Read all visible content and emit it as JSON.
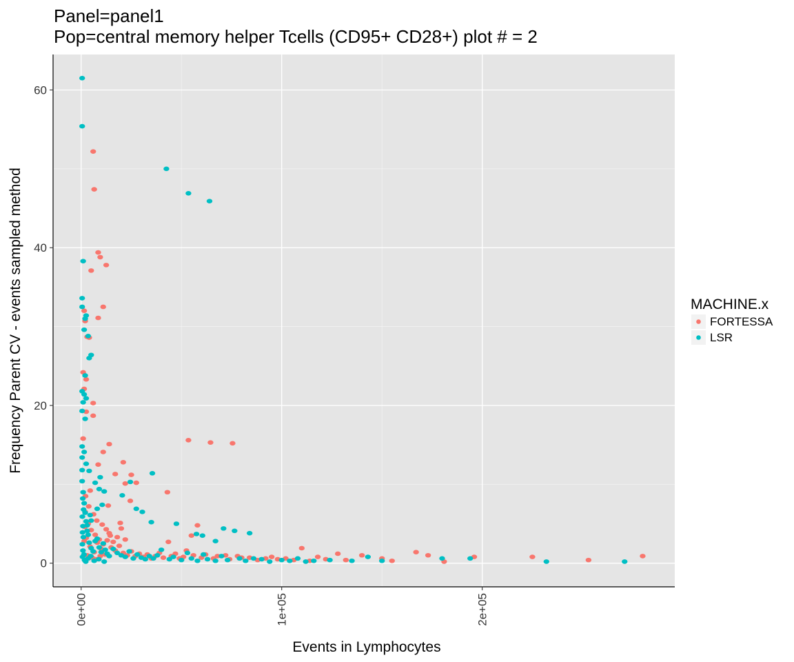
{
  "chart_data": {
    "type": "scatter",
    "title_line1": "Panel=panel1",
    "title_line2": "Pop=central memory helper Tcells (CD95+ CD28+) plot # = 2",
    "xlabel": "Events in Lymphocytes",
    "ylabel": "Frequency Parent CV - events sampled method",
    "xlim": [
      -14000,
      296000
    ],
    "ylim": [
      -3,
      64.5
    ],
    "x_ticks": [
      0,
      100000,
      200000
    ],
    "x_tick_labels": [
      "0e+00",
      "1e+05",
      "2e+05"
    ],
    "y_ticks": [
      0,
      20,
      40,
      60
    ],
    "y_tick_labels": [
      "0",
      "20",
      "40",
      "60"
    ],
    "grid": true,
    "background": "#e5e5e5",
    "legend": {
      "title": "MACHINE.x",
      "position": "right"
    },
    "series": [
      {
        "name": "FORTESSA",
        "color": "#f8766d",
        "points": [
          [
            6000,
            52.2
          ],
          [
            6500,
            47.4
          ],
          [
            8500,
            39.4
          ],
          [
            9500,
            38.8
          ],
          [
            12500,
            37.8
          ],
          [
            5000,
            37.1
          ],
          [
            11000,
            32.5
          ],
          [
            8500,
            31.1
          ],
          [
            1500,
            32.0
          ],
          [
            2000,
            30.7
          ],
          [
            3000,
            28.7
          ],
          [
            4000,
            28.6
          ],
          [
            1000,
            24.2
          ],
          [
            2500,
            23.3
          ],
          [
            1500,
            22.1
          ],
          [
            6000,
            20.3
          ],
          [
            6000,
            18.7
          ],
          [
            2500,
            19.2
          ],
          [
            1000,
            15.8
          ],
          [
            53500,
            15.6
          ],
          [
            64500,
            15.3
          ],
          [
            75500,
            15.2
          ],
          [
            14000,
            15.1
          ],
          [
            11000,
            14.1
          ],
          [
            8500,
            12.5
          ],
          [
            21000,
            12.8
          ],
          [
            17000,
            11.3
          ],
          [
            25000,
            11.2
          ],
          [
            22000,
            10.1
          ],
          [
            27500,
            10.2
          ],
          [
            43000,
            9.0
          ],
          [
            24500,
            7.9
          ],
          [
            13500,
            7.3
          ],
          [
            58000,
            4.8
          ],
          [
            43500,
            2.7
          ],
          [
            55000,
            3.5
          ],
          [
            52500,
            1.6
          ],
          [
            62000,
            1.1
          ],
          [
            72000,
            1.0
          ],
          [
            78000,
            0.9
          ],
          [
            84000,
            0.7
          ],
          [
            95000,
            0.8
          ],
          [
            102000,
            0.6
          ],
          [
            110000,
            1.9
          ],
          [
            118000,
            0.8
          ],
          [
            128000,
            1.2
          ],
          [
            140000,
            1.0
          ],
          [
            150000,
            0.6
          ],
          [
            155000,
            0.3
          ],
          [
            167000,
            1.4
          ],
          [
            173000,
            1.0
          ],
          [
            181000,
            0.2
          ],
          [
            196000,
            0.8
          ],
          [
            225000,
            0.8
          ],
          [
            253000,
            0.4
          ],
          [
            280000,
            0.9
          ],
          [
            2000,
            6.5
          ],
          [
            3500,
            5.0
          ],
          [
            5000,
            4.2
          ],
          [
            7000,
            3.6
          ],
          [
            9000,
            3.0
          ],
          [
            11000,
            2.4
          ],
          [
            13000,
            2.9
          ],
          [
            15000,
            2.0
          ],
          [
            17000,
            1.6
          ],
          [
            19000,
            2.2
          ],
          [
            21000,
            1.3
          ],
          [
            23000,
            1.0
          ],
          [
            25000,
            1.5
          ],
          [
            27000,
            0.9
          ],
          [
            29000,
            1.2
          ],
          [
            31000,
            0.8
          ],
          [
            33000,
            1.1
          ],
          [
            35000,
            0.6
          ],
          [
            37000,
            0.9
          ],
          [
            39000,
            1.3
          ],
          [
            41000,
            0.7
          ],
          [
            45000,
            0.9
          ],
          [
            47000,
            1.2
          ],
          [
            49000,
            0.6
          ],
          [
            51000,
            0.8
          ],
          [
            56000,
            1.0
          ],
          [
            60000,
            0.7
          ],
          [
            66000,
            0.6
          ],
          [
            68000,
            0.9
          ],
          [
            74000,
            0.5
          ],
          [
            80000,
            0.7
          ],
          [
            88000,
            0.4
          ],
          [
            92000,
            0.6
          ],
          [
            98000,
            0.5
          ],
          [
            106000,
            0.4
          ],
          [
            114000,
            0.3
          ],
          [
            122000,
            0.5
          ],
          [
            132000,
            0.4
          ],
          [
            2500,
            3.2
          ],
          [
            4500,
            2.1
          ],
          [
            6500,
            1.4
          ],
          [
            8000,
            2.6
          ],
          [
            10000,
            1.8
          ],
          [
            12000,
            1.1
          ],
          [
            14000,
            3.8
          ],
          [
            16000,
            2.7
          ],
          [
            18000,
            3.3
          ],
          [
            20000,
            4.4
          ],
          [
            22000,
            3.0
          ],
          [
            3000,
            1.0
          ],
          [
            5500,
            0.7
          ],
          [
            7500,
            0.5
          ],
          [
            9500,
            0.9
          ],
          [
            1500,
            2.8
          ],
          [
            1800,
            4.6
          ],
          [
            2200,
            8.5
          ],
          [
            3800,
            7.2
          ],
          [
            4500,
            9.2
          ],
          [
            6200,
            6.2
          ],
          [
            7800,
            5.4
          ],
          [
            10500,
            4.9
          ],
          [
            12500,
            4.3
          ],
          [
            14500,
            3.5
          ],
          [
            19500,
            5.1
          ]
        ]
      },
      {
        "name": "LSR",
        "color": "#00bfc4",
        "points": [
          [
            500,
            61.5
          ],
          [
            500,
            55.4
          ],
          [
            42500,
            50.0
          ],
          [
            53500,
            46.9
          ],
          [
            64000,
            45.9
          ],
          [
            1000,
            38.3
          ],
          [
            500,
            33.6
          ],
          [
            500,
            32.5
          ],
          [
            2500,
            31.4
          ],
          [
            2000,
            31.0
          ],
          [
            1500,
            29.6
          ],
          [
            3500,
            28.8
          ],
          [
            5000,
            26.4
          ],
          [
            4000,
            26.0
          ],
          [
            2000,
            23.8
          ],
          [
            500,
            21.8
          ],
          [
            1500,
            21.4
          ],
          [
            2500,
            20.9
          ],
          [
            1000,
            20.4
          ],
          [
            500,
            19.3
          ],
          [
            2000,
            18.3
          ],
          [
            500,
            14.8
          ],
          [
            1500,
            14.1
          ],
          [
            500,
            13.4
          ],
          [
            2500,
            12.6
          ],
          [
            4000,
            11.7
          ],
          [
            35500,
            11.4
          ],
          [
            9500,
            10.9
          ],
          [
            24500,
            10.3
          ],
          [
            7000,
            10.2
          ],
          [
            9000,
            9.4
          ],
          [
            11500,
            9.1
          ],
          [
            20500,
            8.6
          ],
          [
            10500,
            7.4
          ],
          [
            8000,
            6.9
          ],
          [
            27500,
            6.9
          ],
          [
            30500,
            6.5
          ],
          [
            4500,
            6.1
          ],
          [
            5000,
            5.4
          ],
          [
            35000,
            5.2
          ],
          [
            47500,
            5.0
          ],
          [
            3000,
            4.8
          ],
          [
            71000,
            4.4
          ],
          [
            76500,
            4.1
          ],
          [
            84000,
            3.8
          ],
          [
            57500,
            3.7
          ],
          [
            60500,
            3.5
          ],
          [
            67000,
            2.8
          ],
          [
            40000,
            1.7
          ],
          [
            53000,
            1.3
          ],
          [
            61000,
            1.1
          ],
          [
            70000,
            0.9
          ],
          [
            79000,
            0.6
          ],
          [
            90000,
            0.5
          ],
          [
            100000,
            0.4
          ],
          [
            108000,
            0.6
          ],
          [
            116000,
            0.3
          ],
          [
            124000,
            0.4
          ],
          [
            135000,
            0.3
          ],
          [
            143000,
            0.8
          ],
          [
            150000,
            0.3
          ],
          [
            180000,
            0.6
          ],
          [
            194000,
            0.6
          ],
          [
            232000,
            0.2
          ],
          [
            271000,
            0.2
          ],
          [
            1000,
            9.0
          ],
          [
            1500,
            7.6
          ],
          [
            2000,
            6.4
          ],
          [
            2500,
            5.3
          ],
          [
            3000,
            4.1
          ],
          [
            3500,
            3.6
          ],
          [
            4000,
            2.6
          ],
          [
            5000,
            1.9
          ],
          [
            6000,
            1.5
          ],
          [
            7000,
            2.8
          ],
          [
            8000,
            3.1
          ],
          [
            9000,
            2.0
          ],
          [
            10000,
            1.4
          ],
          [
            11000,
            2.5
          ],
          [
            12000,
            1.7
          ],
          [
            13000,
            1.2
          ],
          [
            14000,
            0.9
          ],
          [
            16000,
            1.8
          ],
          [
            18000,
            1.3
          ],
          [
            20000,
            1.0
          ],
          [
            22000,
            0.8
          ],
          [
            24000,
            1.5
          ],
          [
            26000,
            0.6
          ],
          [
            28000,
            1.1
          ],
          [
            30000,
            0.7
          ],
          [
            32000,
            0.5
          ],
          [
            34000,
            0.9
          ],
          [
            36000,
            0.6
          ],
          [
            38000,
            1.0
          ],
          [
            44000,
            0.5
          ],
          [
            46000,
            0.8
          ],
          [
            50000,
            0.4
          ],
          [
            55000,
            0.6
          ],
          [
            58000,
            0.3
          ],
          [
            63000,
            0.5
          ],
          [
            67000,
            0.3
          ],
          [
            73000,
            0.4
          ],
          [
            82000,
            0.3
          ],
          [
            86000,
            0.6
          ],
          [
            94000,
            0.2
          ],
          [
            104000,
            0.3
          ],
          [
            112000,
            0.2
          ],
          [
            500,
            11.8
          ],
          [
            500,
            10.4
          ],
          [
            800,
            8.2
          ],
          [
            1200,
            6.8
          ],
          [
            600,
            5.9
          ],
          [
            900,
            4.7
          ],
          [
            700,
            3.9
          ],
          [
            1100,
            3.3
          ],
          [
            600,
            2.4
          ],
          [
            900,
            1.6
          ],
          [
            1400,
            1.1
          ],
          [
            700,
            0.8
          ],
          [
            1700,
            0.4
          ],
          [
            2300,
            0.2
          ],
          [
            3500,
            0.6
          ],
          [
            4800,
            0.9
          ],
          [
            6500,
            0.3
          ],
          [
            8800,
            0.5
          ],
          [
            11500,
            0.2
          ]
        ]
      }
    ]
  }
}
